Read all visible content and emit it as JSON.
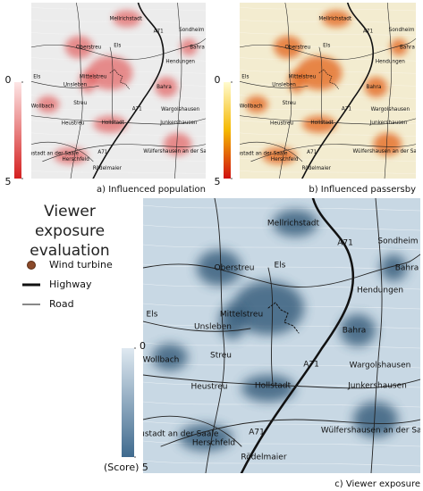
{
  "title": "Viewer exposure evaluation",
  "legend": [
    "Wind turbine",
    "Highway",
    "Road"
  ],
  "places": [
    "Mellrichstadt",
    "A71",
    "Sondheim",
    "Bahra",
    "Oberstreu",
    "Els",
    "Hendungen",
    "Els",
    "Mittelstreu",
    "Unsleben",
    "Bahra",
    "Streu",
    "Wollbach",
    "A71",
    "Wargolshausen",
    "Heustreu",
    "Hollstadt",
    "Junkershausen",
    "Wülfershausen an der Saale",
    "A71",
    "Bad Neustadt an der Saale",
    "Herschfeld",
    "Rödelmaier"
  ],
  "panels": [
    {
      "caption": "a) Influenced population",
      "colorbar_ticks": [
        0,
        5
      ]
    },
    {
      "caption": "b) Influenced passersby",
      "colorbar_ticks": [
        0,
        5
      ]
    },
    {
      "caption": "c) Viewer exposure",
      "colorbar_ticks": [
        0,
        {
          "value": 5,
          "label": "(Score)  5"
        }
      ]
    }
  ]
}
